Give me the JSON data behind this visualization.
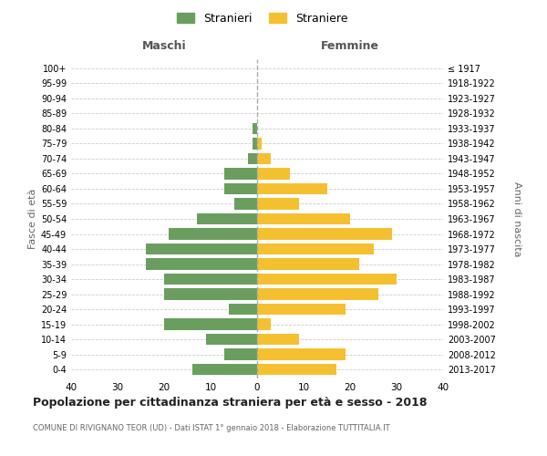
{
  "age_groups": [
    "0-4",
    "5-9",
    "10-14",
    "15-19",
    "20-24",
    "25-29",
    "30-34",
    "35-39",
    "40-44",
    "45-49",
    "50-54",
    "55-59",
    "60-64",
    "65-69",
    "70-74",
    "75-79",
    "80-84",
    "85-89",
    "90-94",
    "95-99",
    "100+"
  ],
  "birth_years": [
    "2013-2017",
    "2008-2012",
    "2003-2007",
    "1998-2002",
    "1993-1997",
    "1988-1992",
    "1983-1987",
    "1978-1982",
    "1973-1977",
    "1968-1972",
    "1963-1967",
    "1958-1962",
    "1953-1957",
    "1948-1952",
    "1943-1947",
    "1938-1942",
    "1933-1937",
    "1928-1932",
    "1923-1927",
    "1918-1922",
    "≤ 1917"
  ],
  "males": [
    14,
    7,
    11,
    20,
    6,
    20,
    20,
    24,
    24,
    19,
    13,
    5,
    7,
    7,
    2,
    1,
    1,
    0,
    0,
    0,
    0
  ],
  "females": [
    17,
    19,
    9,
    3,
    19,
    26,
    30,
    22,
    25,
    29,
    20,
    9,
    15,
    7,
    3,
    1,
    0,
    0,
    0,
    0,
    0
  ],
  "male_color": "#6a9e5f",
  "female_color": "#f5c030",
  "title": "Popolazione per cittadinanza straniera per età e sesso - 2018",
  "subtitle": "COMUNE DI RIVIGNANO TEOR (UD) - Dati ISTAT 1° gennaio 2018 - Elaborazione TUTTITALIA.IT",
  "xlabel_left": "Maschi",
  "xlabel_right": "Femmine",
  "ylabel_left": "Fasce di età",
  "ylabel_right": "Anni di nascita",
  "xlim": 40,
  "background_color": "#ffffff",
  "grid_color": "#cccccc",
  "legend_male": "Stranieri",
  "legend_female": "Straniere"
}
